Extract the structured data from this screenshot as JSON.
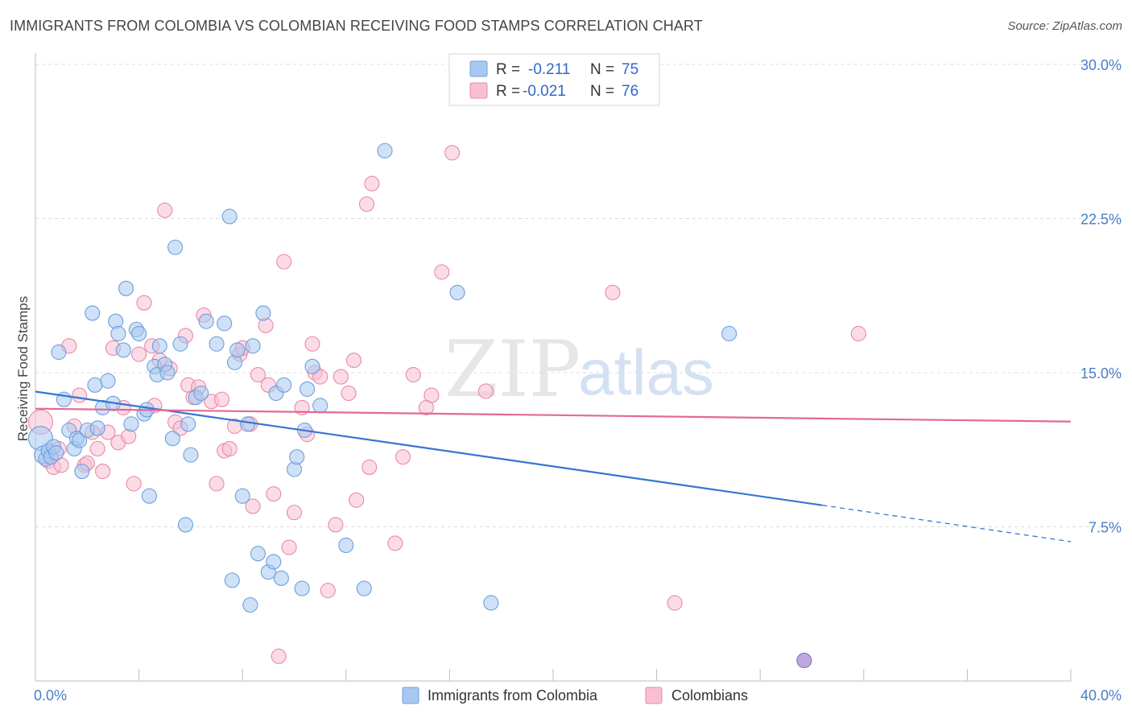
{
  "header": {
    "title": "IMMIGRANTS FROM COLOMBIA VS COLOMBIAN RECEIVING FOOD STAMPS CORRELATION CHART",
    "source": "Source: ZipAtlas.com"
  },
  "watermark": {
    "part1": "ZIP",
    "part2": "atlas"
  },
  "legend": {
    "rows": [
      {
        "r_label": "R =",
        "r_value": "-0.211",
        "n_label": "N =",
        "n_value": "75",
        "color": "#a8c8f0",
        "stroke": "#6f9fdc"
      },
      {
        "r_label": "R =",
        "r_value": "-0.021",
        "n_label": "N =",
        "n_value": "76",
        "color": "#f8bfd2",
        "stroke": "#e889aa"
      }
    ]
  },
  "bottom_legend": [
    {
      "label": "Immigrants from Colombia",
      "color": "#a8c8f0",
      "stroke": "#6f9fdc"
    },
    {
      "label": "Colombians",
      "color": "#f8bfd2",
      "stroke": "#e889aa"
    }
  ],
  "chart_data": {
    "type": "scatter",
    "ylabel": "Receiving Food Stamps",
    "xlim": [
      0,
      40
    ],
    "ylim": [
      0,
      30
    ],
    "x_ticks": [
      0,
      40
    ],
    "x_tick_labels": [
      "0.0%",
      "40.0%"
    ],
    "y_ticks": [
      7.5,
      15.0,
      22.5,
      30.0
    ],
    "y_tick_labels": [
      "7.5%",
      "15.0%",
      "22.5%",
      "30.0%"
    ],
    "grid": true,
    "legend_position": "top-center",
    "colors": {
      "blue": "#a8c8f0",
      "blue_stroke": "#6f9fdc",
      "blue_line": "#3575d3",
      "pink": "#f8bfd2",
      "pink_stroke": "#e889aa",
      "pink_line": "#e2689a"
    },
    "series": [
      {
        "name": "Immigrants from Colombia",
        "color_key": "blue",
        "trend": {
          "x": [
            0,
            30.4
          ],
          "y": [
            14.08,
            8.55
          ],
          "dashed_to_x": 40,
          "dashed_y": 6.78
        },
        "points": [
          [
            0.2,
            11.8
          ],
          [
            0.3,
            11.0
          ],
          [
            0.4,
            10.8
          ],
          [
            0.5,
            11.2
          ],
          [
            0.6,
            10.9
          ],
          [
            0.7,
            11.4
          ],
          [
            0.8,
            11.1
          ],
          [
            0.9,
            16.0
          ],
          [
            1.1,
            13.7
          ],
          [
            1.3,
            12.2
          ],
          [
            1.5,
            11.3
          ],
          [
            1.6,
            11.8
          ],
          [
            1.7,
            11.7
          ],
          [
            1.8,
            10.2
          ],
          [
            2.0,
            12.2
          ],
          [
            2.2,
            17.9
          ],
          [
            2.3,
            14.4
          ],
          [
            2.4,
            12.3
          ],
          [
            2.6,
            13.3
          ],
          [
            2.8,
            14.6
          ],
          [
            3.0,
            13.5
          ],
          [
            3.1,
            17.5
          ],
          [
            3.2,
            16.9
          ],
          [
            3.4,
            16.1
          ],
          [
            3.5,
            19.1
          ],
          [
            3.7,
            12.5
          ],
          [
            3.9,
            17.1
          ],
          [
            4.0,
            16.9
          ],
          [
            4.2,
            13.0
          ],
          [
            4.3,
            13.2
          ],
          [
            4.4,
            9.0
          ],
          [
            4.6,
            15.3
          ],
          [
            4.7,
            14.9
          ],
          [
            4.8,
            16.3
          ],
          [
            5.0,
            15.4
          ],
          [
            5.1,
            15.0
          ],
          [
            5.3,
            11.8
          ],
          [
            5.4,
            21.1
          ],
          [
            5.6,
            16.4
          ],
          [
            5.8,
            7.6
          ],
          [
            5.9,
            12.5
          ],
          [
            6.0,
            11.0
          ],
          [
            6.2,
            13.8
          ],
          [
            6.4,
            14.0
          ],
          [
            6.6,
            17.5
          ],
          [
            7.0,
            16.4
          ],
          [
            7.3,
            17.4
          ],
          [
            7.5,
            22.6
          ],
          [
            7.6,
            4.9
          ],
          [
            7.7,
            15.5
          ],
          [
            7.8,
            16.1
          ],
          [
            8.0,
            9.0
          ],
          [
            8.2,
            12.5
          ],
          [
            8.3,
            3.7
          ],
          [
            8.4,
            16.3
          ],
          [
            8.6,
            6.2
          ],
          [
            8.8,
            17.9
          ],
          [
            9.0,
            5.3
          ],
          [
            9.2,
            5.8
          ],
          [
            9.3,
            14.0
          ],
          [
            9.5,
            5.0
          ],
          [
            9.6,
            14.4
          ],
          [
            10.0,
            10.3
          ],
          [
            10.1,
            10.9
          ],
          [
            10.3,
            4.5
          ],
          [
            10.4,
            12.2
          ],
          [
            10.5,
            14.2
          ],
          [
            10.7,
            15.3
          ],
          [
            11.0,
            13.4
          ],
          [
            12.0,
            6.6
          ],
          [
            12.7,
            4.5
          ],
          [
            13.5,
            25.8
          ],
          [
            16.3,
            18.9
          ],
          [
            17.6,
            3.8
          ],
          [
            26.8,
            16.9
          ]
        ]
      },
      {
        "name": "Colombians",
        "color_key": "pink",
        "trend": {
          "x": [
            0,
            40
          ],
          "y": [
            13.25,
            12.62
          ]
        },
        "points": [
          [
            0.2,
            12.6
          ],
          [
            0.5,
            10.7
          ],
          [
            0.7,
            10.4
          ],
          [
            0.9,
            11.3
          ],
          [
            1.0,
            10.5
          ],
          [
            1.3,
            16.3
          ],
          [
            1.5,
            12.4
          ],
          [
            1.7,
            13.9
          ],
          [
            1.9,
            10.5
          ],
          [
            2.0,
            10.6
          ],
          [
            2.2,
            12.1
          ],
          [
            2.4,
            11.3
          ],
          [
            2.6,
            10.2
          ],
          [
            2.8,
            12.1
          ],
          [
            3.0,
            16.2
          ],
          [
            3.2,
            11.6
          ],
          [
            3.4,
            13.3
          ],
          [
            3.6,
            11.9
          ],
          [
            3.8,
            9.6
          ],
          [
            4.0,
            15.9
          ],
          [
            4.2,
            18.4
          ],
          [
            4.5,
            16.3
          ],
          [
            4.6,
            13.4
          ],
          [
            4.8,
            15.6
          ],
          [
            5.0,
            22.9
          ],
          [
            5.2,
            15.2
          ],
          [
            5.4,
            12.6
          ],
          [
            5.6,
            12.3
          ],
          [
            5.8,
            16.8
          ],
          [
            5.9,
            14.4
          ],
          [
            6.1,
            13.8
          ],
          [
            6.3,
            14.3
          ],
          [
            6.5,
            17.8
          ],
          [
            6.8,
            13.6
          ],
          [
            7.0,
            9.6
          ],
          [
            7.2,
            13.7
          ],
          [
            7.3,
            11.2
          ],
          [
            7.5,
            11.3
          ],
          [
            7.7,
            12.4
          ],
          [
            7.9,
            15.9
          ],
          [
            8.0,
            16.2
          ],
          [
            8.3,
            12.5
          ],
          [
            8.4,
            8.5
          ],
          [
            8.6,
            14.9
          ],
          [
            8.9,
            17.3
          ],
          [
            9.0,
            14.4
          ],
          [
            9.2,
            9.1
          ],
          [
            9.4,
            1.2
          ],
          [
            9.6,
            20.4
          ],
          [
            9.8,
            6.5
          ],
          [
            10.0,
            8.2
          ],
          [
            10.3,
            13.3
          ],
          [
            10.5,
            12.0
          ],
          [
            10.7,
            16.4
          ],
          [
            10.8,
            15.0
          ],
          [
            11.0,
            14.8
          ],
          [
            11.3,
            4.4
          ],
          [
            11.6,
            7.6
          ],
          [
            11.8,
            14.8
          ],
          [
            12.1,
            14.0
          ],
          [
            12.3,
            15.6
          ],
          [
            12.4,
            8.8
          ],
          [
            12.8,
            23.2
          ],
          [
            12.9,
            10.4
          ],
          [
            13.0,
            24.2
          ],
          [
            13.9,
            6.7
          ],
          [
            14.2,
            10.9
          ],
          [
            14.6,
            14.9
          ],
          [
            15.1,
            13.3
          ],
          [
            15.3,
            13.9
          ],
          [
            15.7,
            19.9
          ],
          [
            16.1,
            25.7
          ],
          [
            17.4,
            14.1
          ],
          [
            22.3,
            18.9
          ],
          [
            24.7,
            3.8
          ],
          [
            31.8,
            16.9
          ]
        ]
      }
    ],
    "extra_point": {
      "x": 29.7,
      "y": 1.0,
      "color": "#b7a0d6",
      "stroke": "#8a6fbf"
    }
  }
}
